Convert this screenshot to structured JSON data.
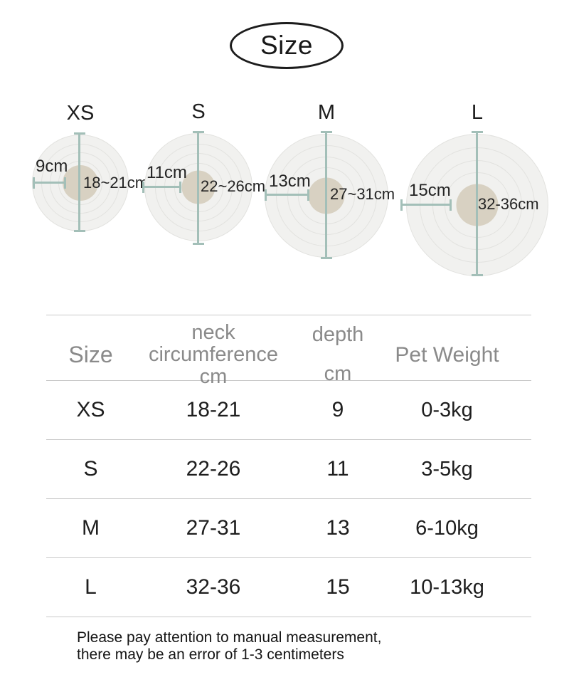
{
  "title": "Size",
  "diagrams": [
    {
      "label": "XS",
      "depth_label": "9cm",
      "circumference_label": "18~21cm"
    },
    {
      "label": "S",
      "depth_label": "11cm",
      "circumference_label": "22~26cm"
    },
    {
      "label": "M",
      "depth_label": "13cm",
      "circumference_label": "27~31cm"
    },
    {
      "label": "L",
      "depth_label": "15cm",
      "circumference_label": "32-36cm"
    }
  ],
  "table": {
    "headers": {
      "size": "Size",
      "neck": "neck\ncircumference\ncm",
      "depth": "depth\ncm",
      "weight": "Pet Weight"
    },
    "rows": [
      {
        "size": "XS",
        "neck": "18-21",
        "depth": "9",
        "weight": "0-3kg"
      },
      {
        "size": "S",
        "neck": "22-26",
        "depth": "11",
        "weight": "3-5kg"
      },
      {
        "size": "M",
        "neck": "27-31",
        "depth": "13",
        "weight": "6-10kg"
      },
      {
        "size": "L",
        "neck": "32-36",
        "depth": "15",
        "weight": "10-13kg"
      }
    ]
  },
  "footnote": "Please pay attention to manual measurement,\nthere may be an error of 1-3 centimeters",
  "colors": {
    "circle-fill": "#f1f1ef",
    "ring": "#e2e2df",
    "beige": "#d8d1c2",
    "sage": "#a3bfb8",
    "line": "#c9c9c9",
    "header-gray": "#8a8a8a"
  }
}
